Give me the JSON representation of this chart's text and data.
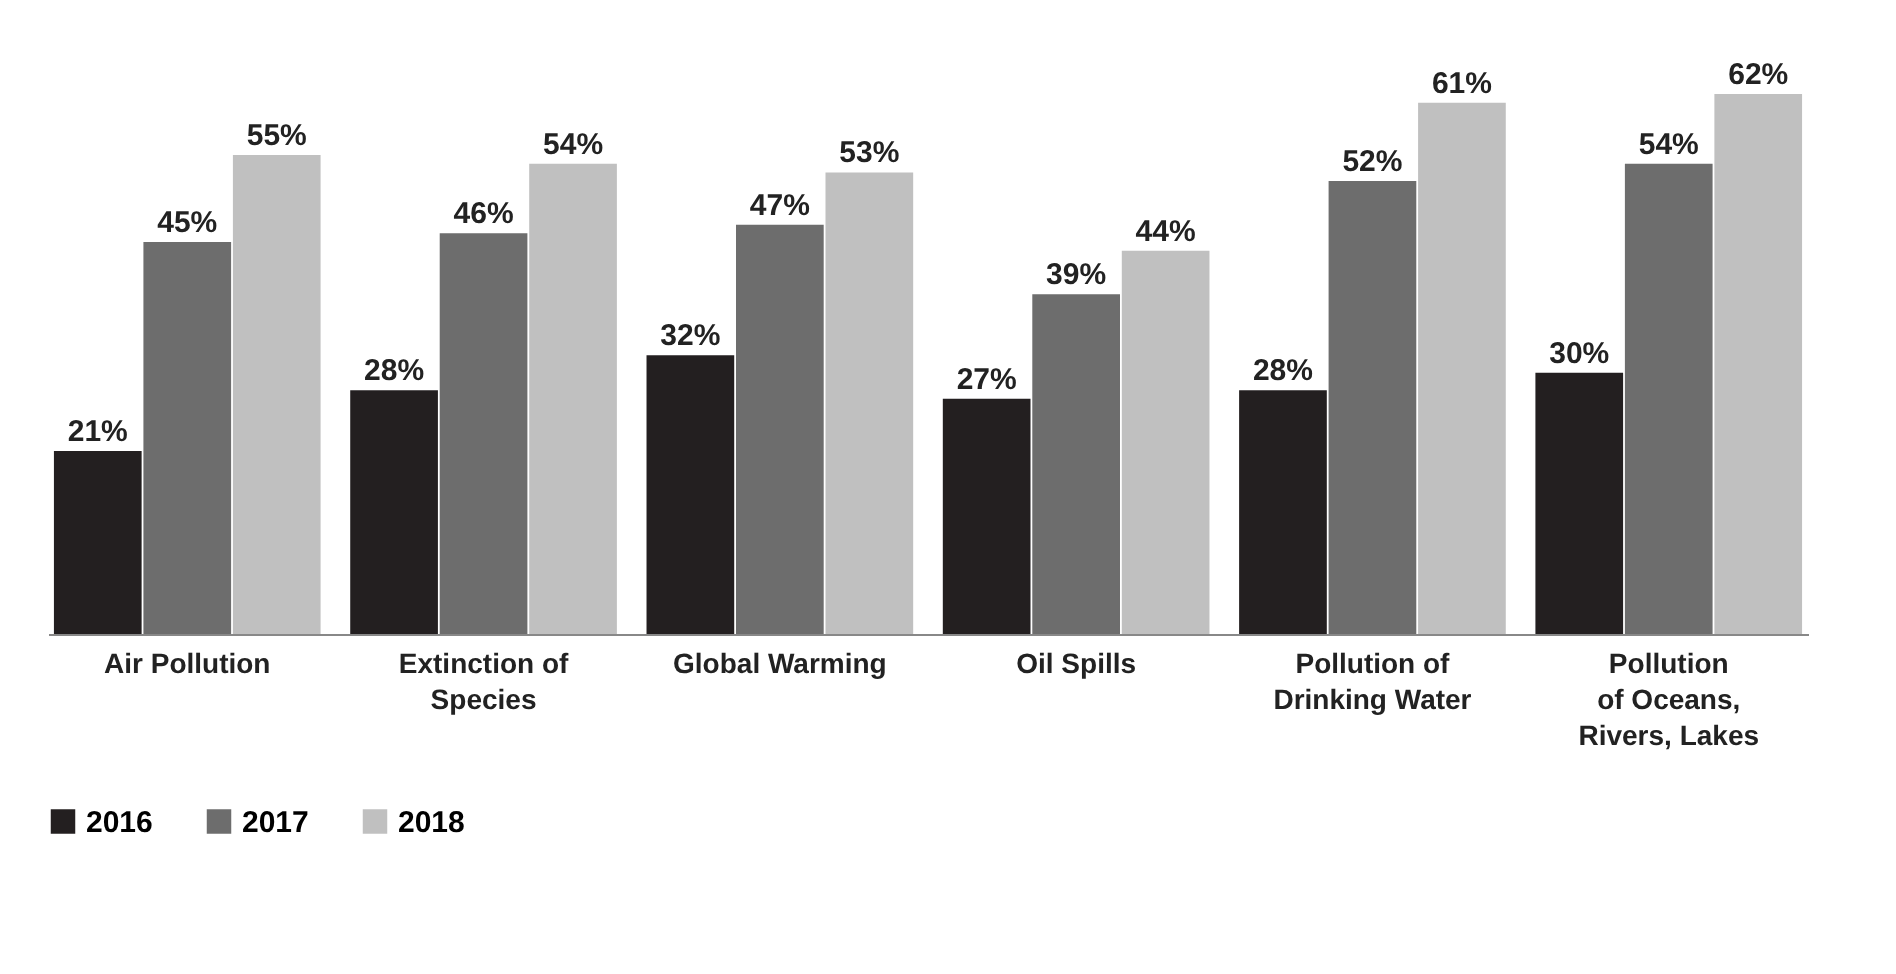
{
  "chart_data": {
    "type": "bar",
    "categories": [
      "Air Pollution",
      "Extinction of\nSpecies",
      "Global Warming",
      "Oil Spills",
      "Pollution of\nDrinking Water",
      "Pollution\nof Oceans,\nRivers, Lakes"
    ],
    "series": [
      {
        "name": "2016",
        "color": "#231f20",
        "values": [
          21,
          28,
          32,
          27,
          28,
          30
        ],
        "value_labels": [
          "21%",
          "28%",
          "32%",
          "27%",
          "28%",
          "30%"
        ]
      },
      {
        "name": "2017",
        "color": "#6d6d6d",
        "values": [
          45,
          46,
          47,
          39,
          52,
          54
        ],
        "value_labels": [
          "45%",
          "46%",
          "47%",
          "39%",
          "52%",
          "54%"
        ]
      },
      {
        "name": "2018",
        "color": "#c0c0c0",
        "values": [
          55,
          54,
          53,
          44,
          61,
          62
        ],
        "value_labels": [
          "55%",
          "54%",
          "53%",
          "44%",
          "61%",
          "62%"
        ]
      }
    ],
    "legend": "bottom"
  }
}
